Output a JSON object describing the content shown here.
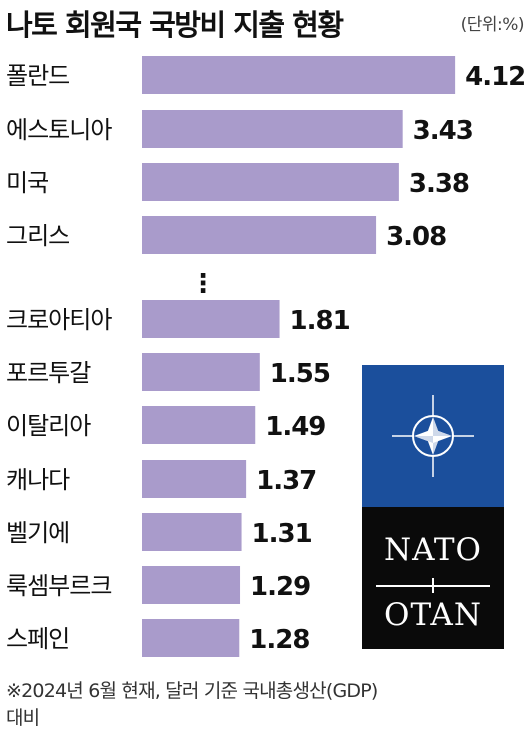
{
  "title": "나토 회원국 국방비 지출 현황",
  "unit": "(단위:%)",
  "chart_data": {
    "type": "bar",
    "orientation": "horizontal",
    "title": "나토 회원국 국방비 지출 현황",
    "unit": "(단위:%)",
    "categories": [
      "폴란드",
      "에스토니아",
      "미국",
      "그리스",
      "크로아티아",
      "포르투갈",
      "이탈리아",
      "캐나다",
      "벨기에",
      "룩셈부르크",
      "스페인"
    ],
    "values": [
      4.12,
      3.43,
      3.38,
      3.08,
      1.81,
      1.55,
      1.49,
      1.37,
      1.31,
      1.29,
      1.28
    ],
    "value_labels": [
      "4.12",
      "3.43",
      "3.38",
      "3.08",
      "1.81",
      "1.55",
      "1.49",
      "1.37",
      "1.31",
      "1.29",
      "1.28"
    ],
    "gap_marker": "⋮",
    "bar_color": "#a99bcb",
    "grid": false
  },
  "logo": {
    "top_text": "NATO",
    "bottom_text": "OTAN",
    "blue": "#1b4f9c"
  },
  "footnote": {
    "line1": "※2024년 6월 현재, 달러 기준 국내총생산(GDP)",
    "line2": "대비"
  }
}
